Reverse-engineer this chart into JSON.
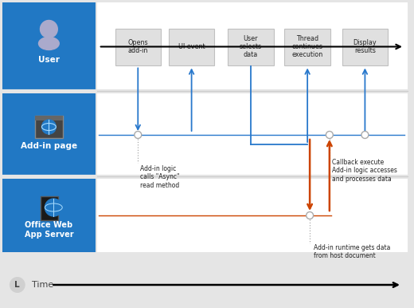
{
  "bg_color": "#e5e5e5",
  "white": "#ffffff",
  "blue_panel": "#2178c4",
  "light_gray_box": "#e0e0e0",
  "border_gray": "#c0c0c0",
  "arrow_blue": "#2878cc",
  "arrow_orange": "#cc4400",
  "text_dark": "#222222",
  "text_white": "#ffffff",
  "note1": "Add-in logic\ncalls \"Async\"\nread method",
  "note2": "Callback execute\nAdd-in logic accesses\nand processes data",
  "note3": "Add-in runtime gets data\nfrom host document",
  "step_labels": [
    "Opens\nadd-in",
    "UI event",
    "User\nselects\ndata",
    "Thread\ncontinues\nexecution",
    "Display\nresults"
  ],
  "row_labels": [
    "User",
    "Add-in page",
    "Office Web\nApp Server"
  ]
}
